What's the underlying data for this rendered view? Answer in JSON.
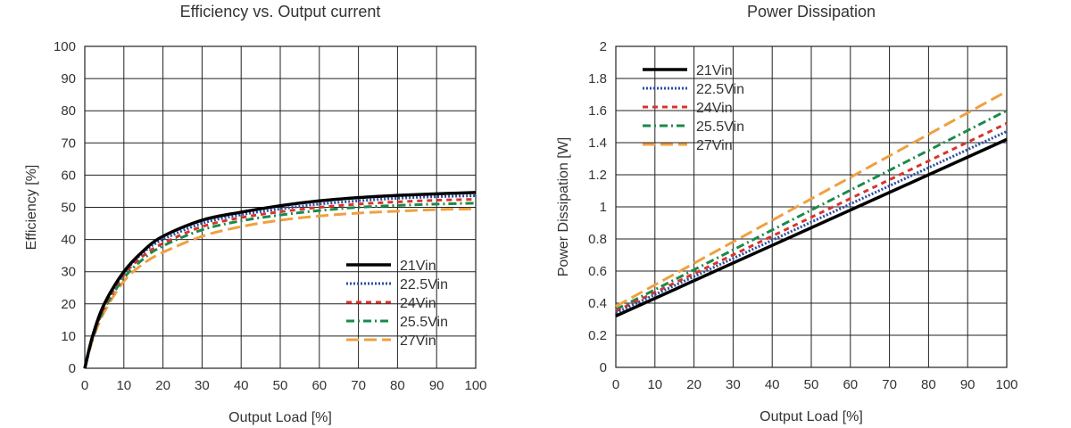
{
  "chart_data": [
    {
      "type": "line",
      "title": "Efficiency vs. Output current",
      "xlabel": "Output Load [%]",
      "ylabel": "Efficiency [%]",
      "xlim": [
        0,
        100
      ],
      "ylim": [
        0,
        100
      ],
      "xticks": [
        0,
        10,
        20,
        30,
        40,
        50,
        60,
        70,
        80,
        90,
        100
      ],
      "yticks": [
        0,
        10,
        20,
        30,
        40,
        50,
        60,
        70,
        80,
        90,
        100
      ],
      "grid": true,
      "legend": "bottom-right",
      "x": [
        0,
        2,
        5,
        10,
        15,
        20,
        30,
        40,
        50,
        60,
        70,
        80,
        90,
        100
      ],
      "series": [
        {
          "name": "21Vin",
          "color": "#000000",
          "dash": "solid",
          "values": [
            0,
            10,
            20,
            30,
            36.5,
            41,
            46,
            48.5,
            50.5,
            52,
            53,
            53.7,
            54.2,
            54.6
          ]
        },
        {
          "name": "22.5Vin",
          "color": "#2b4ea0",
          "dash": "dot",
          "values": [
            0,
            9.8,
            19.7,
            29.5,
            36,
            40,
            45,
            47.7,
            49.5,
            51,
            52,
            52.8,
            53.3,
            53.6
          ]
        },
        {
          "name": "24Vin",
          "color": "#d9342b",
          "dash": "dash",
          "values": [
            0,
            9.5,
            19,
            29,
            35,
            38.8,
            44,
            46.8,
            48.6,
            50,
            51,
            51.7,
            52.2,
            52.5
          ]
        },
        {
          "name": "25.5Vin",
          "color": "#1a8a4a",
          "dash": "dashdot",
          "values": [
            0,
            9.2,
            18.5,
            28,
            34,
            38,
            43,
            45.8,
            47.6,
            49,
            50,
            50.6,
            51,
            51.3
          ]
        },
        {
          "name": "27Vin",
          "color": "#f0a040",
          "dash": "longdash",
          "values": [
            0,
            8.8,
            17.5,
            27,
            32.5,
            36,
            41,
            44,
            46,
            47.3,
            48.2,
            48.8,
            49.3,
            49.5
          ]
        }
      ]
    },
    {
      "type": "line",
      "title": "Power Dissipation",
      "xlabel": "Output Load [%]",
      "ylabel": "Power Dissipation [W]",
      "xlim": [
        0,
        100
      ],
      "ylim": [
        0,
        2
      ],
      "xticks": [
        0,
        10,
        20,
        30,
        40,
        50,
        60,
        70,
        80,
        90,
        100
      ],
      "yticks": [
        "0",
        "0.2",
        "0.4",
        "0.6",
        "0.8",
        "1",
        "1.2",
        "1.4",
        "1.6",
        "1.8",
        "2"
      ],
      "grid": true,
      "legend": "top-left",
      "x": [
        0,
        100
      ],
      "series": [
        {
          "name": "21Vin",
          "color": "#000000",
          "dash": "solid",
          "values": [
            0.32,
            1.42
          ]
        },
        {
          "name": "22.5Vin",
          "color": "#2b4ea0",
          "dash": "dot",
          "values": [
            0.34,
            1.47
          ]
        },
        {
          "name": "24Vin",
          "color": "#d9342b",
          "dash": "dash",
          "values": [
            0.35,
            1.52
          ]
        },
        {
          "name": "25.5Vin",
          "color": "#1a8a4a",
          "dash": "dashdot",
          "values": [
            0.36,
            1.6
          ]
        },
        {
          "name": "27Vin",
          "color": "#f0a040",
          "dash": "longdash",
          "values": [
            0.38,
            1.72
          ]
        }
      ]
    }
  ]
}
